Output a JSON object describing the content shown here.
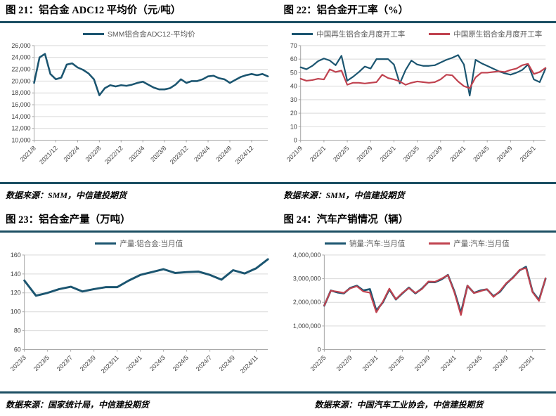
{
  "colors": {
    "rule": "#1c4f63",
    "blue": "#1b5570",
    "red": "#c0424f",
    "grid": "#d9d9d9",
    "axis": "#a6a6a6",
    "tick_text": "#404040",
    "legend_text": "#595959"
  },
  "chart_data": [
    {
      "type": "line",
      "title": "图 21：铝合金 ADC12 平均价（元/吨）",
      "source": "数据来源：SMM，中信建投期货",
      "ylim": [
        10000,
        26000
      ],
      "ystep": 2000,
      "grid": true,
      "legend_position": "top",
      "x_tick_labels": [
        "2021/8",
        "2021/12",
        "2022/4",
        "2022/8",
        "2022/12",
        "2023/4",
        "2023/8",
        "2023/12",
        "2024/4",
        "2024/8",
        "2024/12"
      ],
      "x_tick_step": 4,
      "series": [
        {
          "name": "SMM铝合金ADC12-平均价",
          "color_key": "blue",
          "values": [
            19700,
            24000,
            24600,
            21200,
            20300,
            20600,
            22800,
            23000,
            22300,
            21900,
            21300,
            20300,
            17600,
            18800,
            19300,
            19100,
            19300,
            19200,
            19400,
            19700,
            19900,
            19400,
            18900,
            18600,
            18600,
            18800,
            19400,
            20300,
            19700,
            20000,
            20000,
            20300,
            20800,
            20900,
            20500,
            20300,
            19700,
            20200,
            20700,
            21000,
            21200,
            21000,
            21200,
            20800
          ]
        }
      ]
    },
    {
      "type": "line",
      "title": "图 22：铝合金开工率（%）",
      "source": "数据来源：SMM，中信建投期货",
      "ylim": [
        0,
        70
      ],
      "ystep": 10,
      "grid": true,
      "legend_position": "top",
      "x_tick_labels": [
        "2021/9",
        "2022/1",
        "2022/5",
        "2022/9",
        "2023/1",
        "2023/5",
        "2023/9",
        "2024/1",
        "2024/5",
        "2024/9",
        "2025/1"
      ],
      "x_tick_step": 4,
      "series": [
        {
          "name": "中国再生铝合金月度开工率",
          "color_key": "blue",
          "values": [
            54,
            52.5,
            55,
            58.5,
            60.5,
            59,
            55.5,
            62.5,
            44,
            47,
            50.5,
            54.5,
            53,
            60,
            60,
            60,
            56,
            42,
            52,
            59,
            56,
            55,
            55,
            55.5,
            57.5,
            59.5,
            61,
            63,
            56,
            33,
            59.5,
            57,
            55,
            53,
            51,
            49.5,
            48.5,
            50,
            52,
            56,
            45,
            43,
            53
          ]
        },
        {
          "name": "中国原生铝合金月度开工率",
          "color_key": "red",
          "values": [
            45.5,
            44,
            44.5,
            45.5,
            45,
            52.5,
            50.5,
            51.5,
            41,
            42.5,
            42.5,
            42,
            42.5,
            43,
            48.5,
            46,
            45,
            43.5,
            41,
            42.5,
            43.5,
            43,
            42.5,
            43,
            45,
            48.5,
            48,
            43.5,
            40,
            38.5,
            46.5,
            50,
            50,
            50.5,
            51,
            50.5,
            52,
            53,
            55.5,
            56.5,
            49,
            50.5,
            53.5
          ]
        }
      ]
    },
    {
      "type": "line",
      "title": "图 23：铝合金产量（万吨）",
      "source": "数据来源：国家统计局，中信建投期货",
      "ylim": [
        60,
        160
      ],
      "ystep": 20,
      "grid": true,
      "legend_position": "top",
      "x_tick_labels": [
        "2023/3",
        "2023/5",
        "2023/7",
        "2023/9",
        "2023/11",
        "2024/1",
        "2024/3",
        "2024/5",
        "2024/7",
        "2024/9",
        "2024/11"
      ],
      "x_tick_step": 2,
      "series": [
        {
          "name": "产量:铝合金:当月值",
          "color_key": "blue",
          "values": [
            133,
            117,
            120,
            124,
            126.5,
            121.5,
            124,
            126,
            126,
            133,
            139,
            142,
            145,
            141,
            142,
            142.5,
            139,
            134,
            144,
            140.5,
            146,
            155.5
          ]
        }
      ]
    },
    {
      "type": "line",
      "title": "图 24：汽车产销情况（辆）",
      "source": "数据来源：中国汽车工业协会，中信建投期货",
      "ylim": [
        0,
        4000000
      ],
      "ystep": 1000000,
      "grid": true,
      "legend_position": "top",
      "x_tick_labels": [
        "2022/5",
        "2022/9",
        "2023/1",
        "2023/5",
        "2023/9",
        "2024/1",
        "2024/5",
        "2024/9",
        "2025/1"
      ],
      "x_tick_step": 4,
      "series": [
        {
          "name": "销量:汽车:当月值",
          "color_key": "blue",
          "values": [
            1860000,
            2500000,
            2420000,
            2380000,
            2610000,
            2700000,
            2500000,
            2560000,
            1650000,
            2000000,
            2550000,
            2120000,
            2380000,
            2620000,
            2380000,
            2580000,
            2860000,
            2850000,
            2970000,
            3160000,
            2450000,
            1550000,
            2700000,
            2400000,
            2500000,
            2550000,
            2260000,
            2450000,
            2800000,
            3050000,
            3350000,
            3500000,
            2450000,
            2100000,
            3000000
          ]
        },
        {
          "name": "产量:汽车:当月值",
          "color_key": "red",
          "values": [
            1870000,
            2490000,
            2450000,
            2400000,
            2590000,
            2680000,
            2460000,
            2410000,
            1580000,
            2030000,
            2580000,
            2130000,
            2400000,
            2600000,
            2400000,
            2560000,
            2880000,
            2870000,
            3000000,
            3150000,
            2410000,
            1460000,
            2710000,
            2390000,
            2470000,
            2560000,
            2230000,
            2480000,
            2820000,
            3030000,
            3370000,
            3450000,
            2430000,
            2060000,
            3020000
          ]
        }
      ]
    }
  ]
}
